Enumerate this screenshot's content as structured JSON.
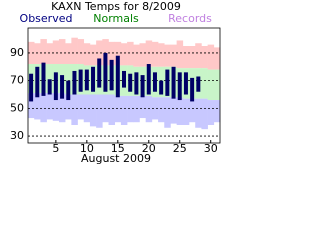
{
  "chart_data": {
    "type": "range-bar",
    "title": "KAXN Temps for 8/2009",
    "x_label": "August 2009",
    "x": [
      1,
      2,
      3,
      4,
      5,
      6,
      7,
      8,
      9,
      10,
      11,
      12,
      13,
      14,
      15,
      16,
      17,
      18,
      19,
      20,
      21,
      22,
      23,
      24,
      25,
      26,
      27,
      28,
      29,
      30,
      31
    ],
    "xlim": [
      0.5,
      31.5
    ],
    "xticks": [
      5,
      10,
      15,
      20,
      25,
      30
    ],
    "ylim": [
      25,
      108
    ],
    "yticks": [
      30,
      50,
      70,
      90
    ],
    "grid": true,
    "series": [
      {
        "name": "Observed",
        "color": "#000066",
        "label_color": "#000080",
        "high": [
          75,
          80,
          83,
          71,
          76,
          74,
          70,
          77,
          78,
          78,
          80,
          86,
          90,
          85,
          88,
          77,
          75,
          76,
          74,
          82,
          76,
          70,
          78,
          80,
          76,
          76,
          72,
          73,
          null,
          null,
          null
        ],
        "low": [
          55,
          58,
          59,
          60,
          56,
          57,
          56,
          60,
          62,
          63,
          62,
          65,
          62,
          63,
          58,
          65,
          62,
          60,
          58,
          60,
          62,
          60,
          59,
          57,
          56,
          60,
          55,
          62,
          null,
          null,
          null
        ]
      },
      {
        "name": "Normals",
        "color": "#c8f5c8",
        "label_color": "#008000",
        "high": [
          82,
          82,
          82,
          82,
          82,
          82,
          82,
          82,
          82,
          81,
          81,
          81,
          81,
          81,
          81,
          81,
          81,
          80,
          80,
          80,
          80,
          80,
          80,
          80,
          79,
          79,
          79,
          79,
          79,
          78,
          78
        ],
        "low": [
          61,
          61,
          61,
          61,
          61,
          61,
          60,
          60,
          60,
          60,
          60,
          60,
          60,
          60,
          59,
          59,
          59,
          59,
          59,
          59,
          58,
          58,
          58,
          58,
          58,
          57,
          57,
          57,
          57,
          56,
          56
        ]
      },
      {
        "name": "Records",
        "color": "#ffc8c8",
        "low_color": "#c8c8ff",
        "label_color": "#c080e0",
        "high": [
          98,
          97,
          100,
          97,
          99,
          100,
          97,
          101,
          100,
          97,
          96,
          99,
          100,
          98,
          98,
          97,
          98,
          96,
          97,
          99,
          98,
          97,
          96,
          96,
          99,
          95,
          95,
          97,
          95,
          96,
          94
        ],
        "low": [
          43,
          42,
          40,
          42,
          41,
          40,
          42,
          38,
          42,
          40,
          37,
          36,
          40,
          38,
          40,
          38,
          40,
          40,
          43,
          40,
          42,
          40,
          36,
          39,
          38,
          38,
          40,
          36,
          35,
          38,
          40
        ]
      }
    ]
  }
}
